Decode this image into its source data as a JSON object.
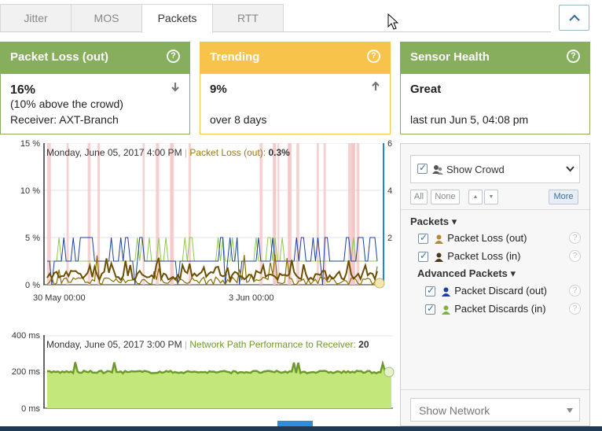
{
  "tabs": [
    {
      "label": "Jitter",
      "active": false
    },
    {
      "label": "MOS",
      "active": false
    },
    {
      "label": "Packets",
      "active": true
    },
    {
      "label": "RTT",
      "active": false
    }
  ],
  "cards": {
    "packet_loss": {
      "title": "Packet Loss (out)",
      "value": "16%",
      "note": "(10% above the crowd)",
      "detail": "Receiver: AXT-Branch",
      "trend_icon": "arrow-down-icon",
      "color": "#86ae5c"
    },
    "trending": {
      "title": "Trending",
      "value": "9%",
      "detail": "over 8 days",
      "trend_icon": "arrow-up-icon",
      "color": "#f8c34b"
    },
    "sensor_health": {
      "title": "Sensor Health",
      "value": "Great",
      "detail": "last run Jun 5, 04:08 pm",
      "color": "#86ae5c"
    }
  },
  "help_glyph": "?",
  "chart_packets": {
    "y_ticks": [
      "15 %",
      "10 %",
      "5 %",
      "0 %"
    ],
    "y2_ticks": [
      "6",
      "4",
      "2"
    ],
    "x_ticks": [
      "30 May 00:00",
      "3 Jun 00:00"
    ],
    "tooltip_date": "Monday, June 05, 2017 4:00 PM",
    "tooltip_sep": "|",
    "tooltip_series": "Packet Loss (out):",
    "tooltip_value": "0.3%"
  },
  "chart_rtt": {
    "y_ticks": [
      "400 ms",
      "200 ms",
      "0 ms"
    ],
    "tooltip_date": "Monday, June 05, 2017 3:00 PM",
    "tooltip_sep": "|",
    "tooltip_series": "Network Path Performance to Receiver:",
    "tooltip_value": "20"
  },
  "chart_data": [
    {
      "type": "line",
      "ylim": [
        0,
        15
      ],
      "y2lim": [
        0,
        6
      ],
      "x_ticks": [
        "30 May 00:00",
        "3 Jun 00:00"
      ],
      "y_ticks": [
        "15 %",
        "10 %",
        "5 %",
        "0 %"
      ],
      "series": [
        {
          "name": "Packet Loss (out)",
          "color": "#6b4e00"
        },
        {
          "name": "Packet Loss (in)",
          "color": "#8a6d00"
        },
        {
          "name": "Packet Discard (out)",
          "color": "#1b3fa0"
        },
        {
          "name": "Packet Discards (in)",
          "color": "#8cc84b"
        }
      ]
    },
    {
      "type": "area",
      "ylim": [
        0,
        400
      ],
      "y_ticks": [
        "400 ms",
        "200 ms",
        "0 ms"
      ],
      "series": [
        {
          "name": "Network Path Performance to Receiver",
          "color": "#6f9a2b"
        }
      ]
    }
  ],
  "panel": {
    "show_crowd_label": "Show Crowd",
    "btn_all": "All",
    "btn_none": "None",
    "btn_up": "▲",
    "btn_down": "▼",
    "btn_more": "More",
    "packets_section": "Packets ▾",
    "items_packets": [
      {
        "label": "Packet Loss (out)",
        "icon_color": "#b08a3a"
      },
      {
        "label": "Packet Loss (in)",
        "icon_color": "#4a3a1a"
      }
    ],
    "advanced_section": "Advanced Packets ▾",
    "items_advanced": [
      {
        "label": "Packet Discard (out)",
        "icon_color": "#1b3fa0"
      },
      {
        "label": "Packet Discards (in)",
        "icon_color": "#7fb23a"
      }
    ],
    "show_network_label": "Show Network"
  }
}
